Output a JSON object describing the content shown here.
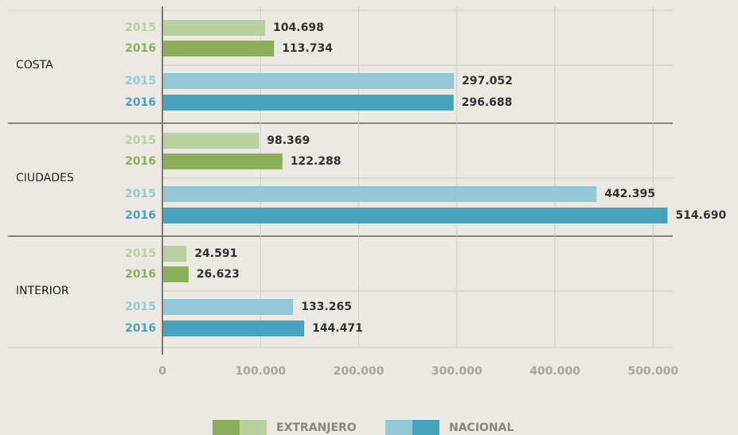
{
  "chart_data": {
    "type": "grouped-bar-horizontal",
    "categories": [
      "COSTA",
      "CIUDADES",
      "INTERIOR"
    ],
    "series": [
      {
        "name": "EXTRANJERO",
        "bars": [
          {
            "year": "2015",
            "color": "#b9d1a0",
            "values": [
              104698,
              98369,
              24591
            ],
            "value_labels": [
              "104.698",
              "98.369",
              "24.591"
            ]
          },
          {
            "year": "2016",
            "color": "#8aae5c",
            "values": [
              113734,
              122288,
              26623
            ],
            "value_labels": [
              "113.734",
              "122.288",
              "26.623"
            ]
          }
        ]
      },
      {
        "name": "NACIONAL",
        "bars": [
          {
            "year": "2015",
            "color": "#93c8d6",
            "values": [
              297052,
              442395,
              133265
            ],
            "value_labels": [
              "297.052",
              "442.395",
              "133.265"
            ]
          },
          {
            "year": "2016",
            "color": "#47a3bd",
            "values": [
              296688,
              514690,
              144471
            ],
            "value_labels": [
              "296.688",
              "514.690",
              "144.471"
            ]
          }
        ]
      }
    ],
    "xlim": [
      0,
      520000
    ],
    "xticks": [
      0,
      {
        "value": 100000,
        "label": "100.000"
      },
      {
        "value": 200000,
        "label": "200.000"
      },
      {
        "value": 300000,
        "label": "300.000"
      },
      {
        "value": 400000,
        "label": "400.000"
      },
      {
        "value": 500000,
        "label": "500.000"
      }
    ],
    "grid": true
  }
}
